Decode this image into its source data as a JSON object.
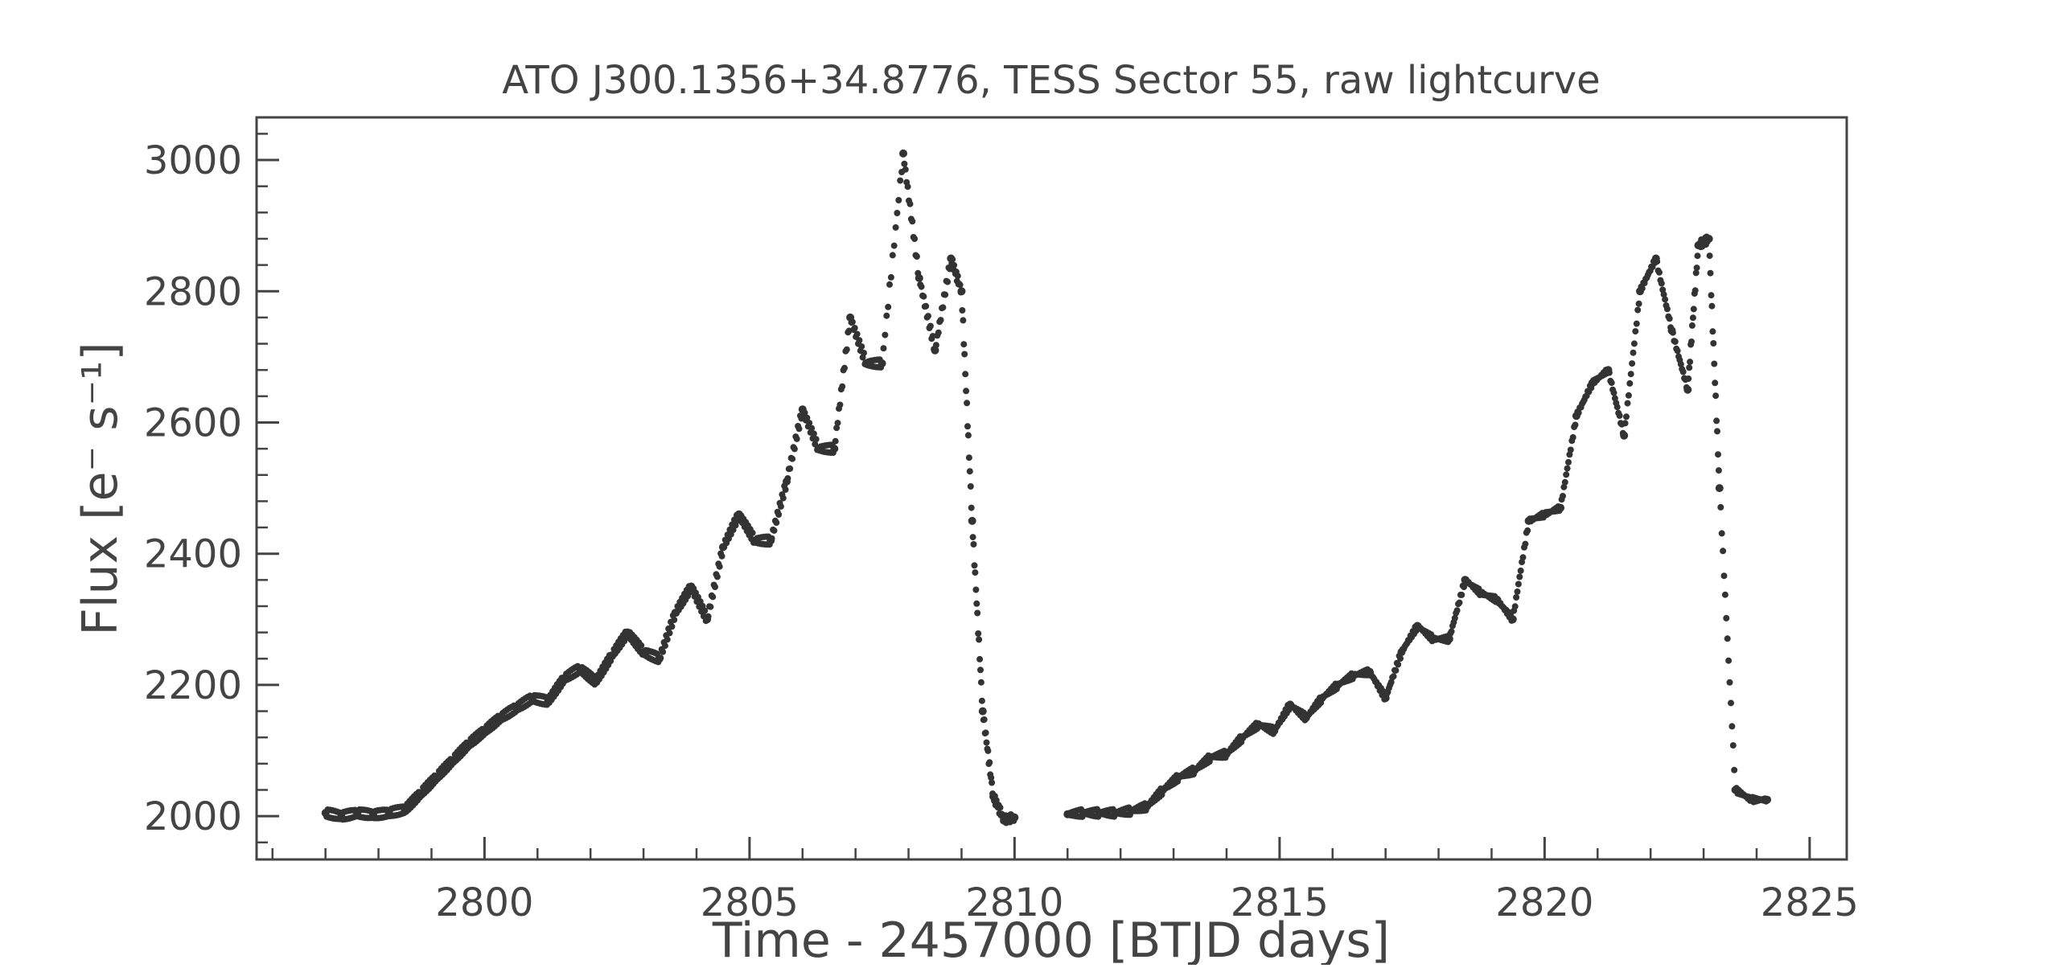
{
  "chart_data": {
    "type": "scatter",
    "title": "ATO J300.1356+34.8776, TESS Sector 55, raw lightcurve",
    "xlabel": "Time - 2457000 [BTJD days]",
    "ylabel": "Flux [e⁻ s⁻¹]",
    "xlim": [
      2795.7,
      2825.7
    ],
    "ylim": [
      1934,
      3065
    ],
    "xticks": [
      2800,
      2805,
      2810,
      2815,
      2820,
      2825
    ],
    "xtick_labels": [
      "2800",
      "2805",
      "2810",
      "2815",
      "2820",
      "2825"
    ],
    "yticks": [
      2000,
      2200,
      2400,
      2600,
      2800,
      3000
    ],
    "ytick_labels": [
      "2000",
      "2200",
      "2400",
      "2600",
      "2800",
      "3000"
    ],
    "grid": false,
    "legend": false,
    "marker_color": "#333333",
    "series": [
      {
        "x": [
          2797.0,
          2797.3,
          2797.6,
          2797.9,
          2798.2,
          2798.5,
          2798.8,
          2799.1,
          2799.4,
          2799.7,
          2800.0,
          2800.3,
          2800.6,
          2800.9,
          2801.2,
          2801.5,
          2801.8,
          2802.1,
          2802.4,
          2802.7,
          2803.0,
          2803.3,
          2803.6,
          2803.9,
          2804.2,
          2804.5,
          2804.8,
          2805.1,
          2805.4,
          2805.7,
          2806.0,
          2806.3,
          2806.6,
          2806.9,
          2807.2,
          2807.5,
          2807.9,
          2808.2,
          2808.5,
          2808.8,
          2809.0,
          2809.2,
          2809.4,
          2809.6,
          2809.8,
          2810.0
        ],
        "y": [
          2005,
          2000,
          2005,
          2002,
          2005,
          2010,
          2035,
          2060,
          2085,
          2110,
          2130,
          2150,
          2165,
          2180,
          2175,
          2210,
          2225,
          2205,
          2245,
          2280,
          2250,
          2240,
          2310,
          2350,
          2300,
          2410,
          2460,
          2420,
          2420,
          2510,
          2620,
          2560,
          2560,
          2760,
          2690,
          2690,
          3010,
          2820,
          2710,
          2850,
          2800,
          2450,
          2160,
          2030,
          1995,
          1998
        ]
      },
      {
        "x": [
          2811.0,
          2811.3,
          2811.6,
          2811.9,
          2812.2,
          2812.5,
          2812.8,
          2813.1,
          2813.4,
          2813.7,
          2814.0,
          2814.3,
          2814.6,
          2814.9,
          2815.2,
          2815.5,
          2815.8,
          2816.1,
          2816.4,
          2816.7,
          2817.0,
          2817.3,
          2817.6,
          2817.9,
          2818.2,
          2818.5,
          2818.8,
          2819.1,
          2819.4,
          2819.7,
          2820.0,
          2820.3,
          2820.6,
          2820.9,
          2821.2,
          2821.5,
          2821.8,
          2822.1,
          2822.4,
          2822.7,
          2822.9,
          2823.1,
          2823.3,
          2823.6,
          2823.9,
          2824.2
        ],
        "y": [
          2003,
          2005,
          2005,
          2005,
          2008,
          2015,
          2040,
          2060,
          2070,
          2090,
          2095,
          2120,
          2140,
          2130,
          2170,
          2150,
          2180,
          2200,
          2215,
          2220,
          2180,
          2250,
          2290,
          2270,
          2270,
          2360,
          2340,
          2330,
          2300,
          2450,
          2460,
          2470,
          2610,
          2660,
          2680,
          2580,
          2800,
          2850,
          2740,
          2650,
          2870,
          2880,
          2500,
          2040,
          2025,
          2025
        ]
      }
    ]
  }
}
